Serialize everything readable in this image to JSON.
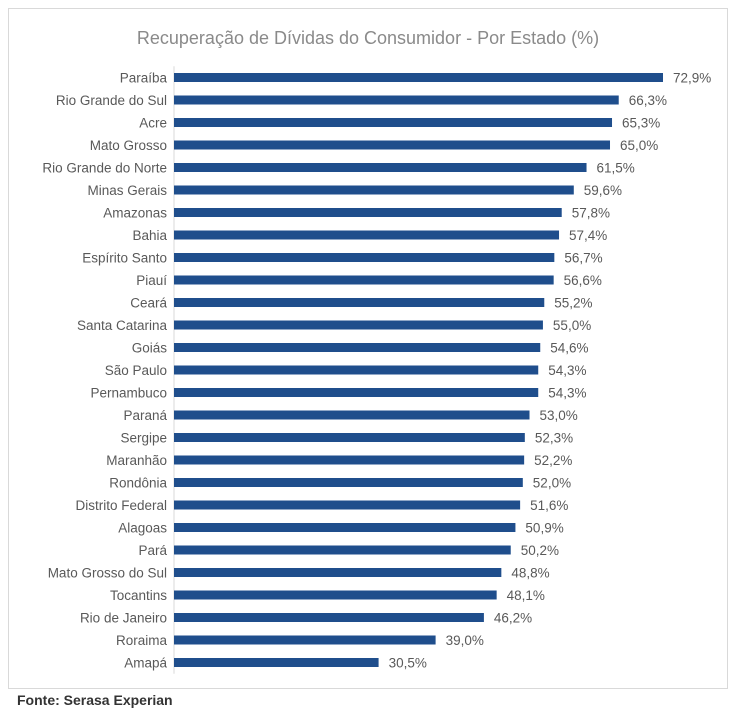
{
  "chart_data": {
    "type": "bar",
    "orientation": "horizontal",
    "title": "Recuperação de Dívidas do Consumidor - Por Estado (%)",
    "categories": [
      "Paraíba",
      "Rio Grande do Sul",
      "Acre",
      "Mato Grosso",
      "Rio Grande do Norte",
      "Minas Gerais",
      "Amazonas",
      "Bahia",
      "Espírito Santo",
      "Piauí",
      "Ceará",
      "Santa Catarina",
      "Goiás",
      "São Paulo",
      "Pernambuco",
      "Paraná",
      "Sergipe",
      "Maranhão",
      "Rondônia",
      "Distrito Federal",
      "Alagoas",
      "Pará",
      "Mato Grosso do Sul",
      "Tocantins",
      "Rio de Janeiro",
      "Roraima",
      "Amapá"
    ],
    "values": [
      72.9,
      66.3,
      65.3,
      65.0,
      61.5,
      59.6,
      57.8,
      57.4,
      56.7,
      56.6,
      55.2,
      55.0,
      54.6,
      54.3,
      54.3,
      53.0,
      52.3,
      52.2,
      52.0,
      51.6,
      50.9,
      50.2,
      48.8,
      48.1,
      46.2,
      39.0,
      30.5
    ],
    "data_labels": [
      "72,9%",
      "66,3%",
      "65,3%",
      "65,0%",
      "61,5%",
      "59,6%",
      "57,8%",
      "57,4%",
      "56,7%",
      "56,6%",
      "55,2%",
      "55,0%",
      "54,6%",
      "54,3%",
      "54,3%",
      "53,0%",
      "52,3%",
      "52,2%",
      "52,0%",
      "51,6%",
      "50,9%",
      "50,2%",
      "48,8%",
      "48,1%",
      "46,2%",
      "39,0%",
      "30,5%"
    ],
    "xlim": [
      0,
      72.9
    ],
    "grid": false,
    "legend": "none",
    "bar_color": "#1f4e8c"
  },
  "source": "Fonte: Serasa Experian"
}
